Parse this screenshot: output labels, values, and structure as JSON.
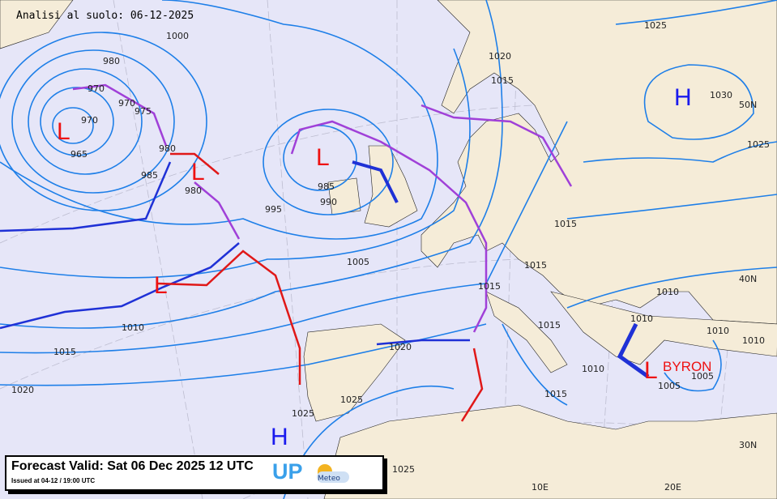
{
  "title": "Analisi al suolo: 06-12-2025",
  "legend": {
    "forecast_valid": "Forecast Valid:  Sat 06 Dec 2025 12 UTC",
    "issued": "Issued at 04-12 / 19:00 UTC",
    "logo_up": "UP",
    "logo_meteo": "Meteo"
  },
  "colors": {
    "sea": "#e6e6f8",
    "land": "#f5ecd8",
    "isobar": "#1e7fe8",
    "high": "#1a1aee",
    "low": "#ee1111",
    "cold_front": "#1f31d6",
    "warm_front": "#e01818",
    "occluded_front": "#a040d8"
  },
  "pressure_centers": [
    {
      "type": "L",
      "label": "L"
    },
    {
      "type": "L",
      "label": "L"
    },
    {
      "type": "L",
      "label": "L"
    },
    {
      "type": "L",
      "label": "L"
    },
    {
      "type": "L",
      "label": "L"
    },
    {
      "type": "H",
      "label": "H"
    },
    {
      "type": "H",
      "label": "H"
    }
  ],
  "named_storm": "BYRON",
  "isobar_labels": [
    "1000",
    "980",
    "970",
    "970",
    "975",
    "965",
    "970",
    "980",
    "985",
    "980",
    "995",
    "985",
    "990",
    "1005",
    "1010",
    "1015",
    "1020",
    "1025",
    "1020",
    "1015",
    "1025",
    "1030",
    "1025",
    "1015",
    "1010",
    "1015",
    "1015",
    "1010",
    "1010",
    "1005",
    "1005",
    "1010",
    "1015",
    "1010",
    "1015",
    "1020",
    "1025",
    "1025"
  ],
  "grid_labels": [
    "50N",
    "40N",
    "30N",
    "10E",
    "20E"
  ]
}
